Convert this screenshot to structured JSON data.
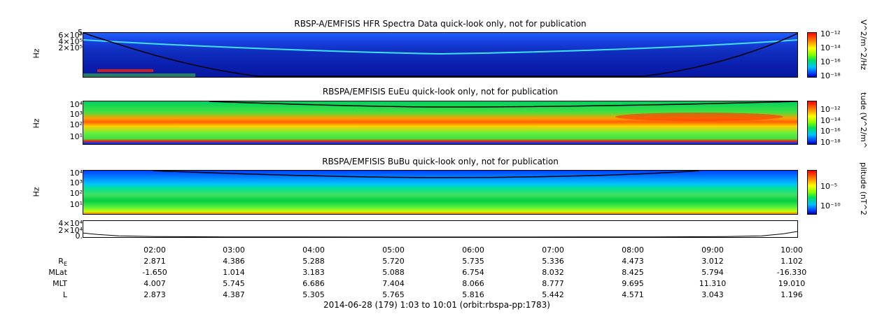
{
  "chart_data": [
    {
      "type": "heatmap",
      "title": "RBSP-A/EMFISIS  HFR Spectra Data quick-look only, not for publication",
      "ylabel": "Hz",
      "yticks": [
        "5",
        "6×10⁵",
        "4×10⁵",
        "2×10⁵"
      ],
      "colorbar_label": "V^2/m^2/Hz",
      "colorbar_ticks": [
        "10⁻¹²",
        "10⁻¹⁴",
        "10⁻¹⁶",
        "10⁻¹⁸"
      ],
      "ylim": [
        0,
        600000
      ],
      "colors": [
        "#ff0000",
        "#ffff00",
        "#00e060",
        "#0000a0"
      ]
    },
    {
      "type": "heatmap",
      "title": "RBSPA/EMFISIS  EuEu quick-look only, not for publication",
      "ylabel": "Hz",
      "yticks": [
        "10⁴",
        "10³",
        "10²",
        "10¹"
      ],
      "colorbar_label": "tude (V^2/m^",
      "colorbar_ticks": [
        "10⁻¹²",
        "10⁻¹⁴",
        "10⁻¹⁶",
        "10⁻¹⁸"
      ],
      "log_scale": true
    },
    {
      "type": "heatmap",
      "title": "RBSPA/EMFISIS  BuBu quick-look only, not for publication",
      "ylabel": "Hz",
      "yticks": [
        "10⁴",
        "10³",
        "10²",
        "10¹"
      ],
      "colorbar_label": "plitude (nT^2",
      "colorbar_ticks": [
        "10⁻⁵",
        "10⁻¹⁰"
      ],
      "log_scale": true
    },
    {
      "type": "line",
      "yticks": [
        "4×10⁴",
        "2×10⁴",
        "0."
      ],
      "x": [
        0,
        0.02,
        0.05,
        0.1,
        0.2,
        0.3,
        0.5,
        0.7,
        0.8,
        0.9,
        0.95,
        0.98,
        1.0
      ],
      "y": [
        10000,
        6500,
        3000,
        1200,
        500,
        300,
        250,
        300,
        500,
        1200,
        3000,
        8000,
        14000
      ]
    }
  ],
  "time_axis": {
    "ticks": [
      "02:00",
      "03:00",
      "04:00",
      "05:00",
      "06:00",
      "07:00",
      "08:00",
      "09:00",
      "10:00"
    ]
  },
  "ephemeris": {
    "rows": [
      {
        "label": "R",
        "sub": "E",
        "values": [
          "2.871",
          "4.386",
          "5.288",
          "5.720",
          "5.735",
          "5.336",
          "4.473",
          "3.012",
          "1.102"
        ]
      },
      {
        "label": "MLat",
        "values": [
          "-1.650",
          "1.014",
          "3.183",
          "5.088",
          "6.754",
          "8.032",
          "8.425",
          "5.794",
          "-16.330"
        ]
      },
      {
        "label": "MLT",
        "values": [
          "4.007",
          "5.745",
          "6.686",
          "7.404",
          "8.066",
          "8.777",
          "9.695",
          "11.310",
          "19.010"
        ]
      },
      {
        "label": "L",
        "values": [
          "2.873",
          "4.387",
          "5.305",
          "5.765",
          "5.816",
          "5.442",
          "4.571",
          "3.043",
          "1.196"
        ]
      }
    ]
  },
  "footer": "2014-06-28 (179) 1:03 to 10:01 (orbit:rbspa-pp:1783)"
}
